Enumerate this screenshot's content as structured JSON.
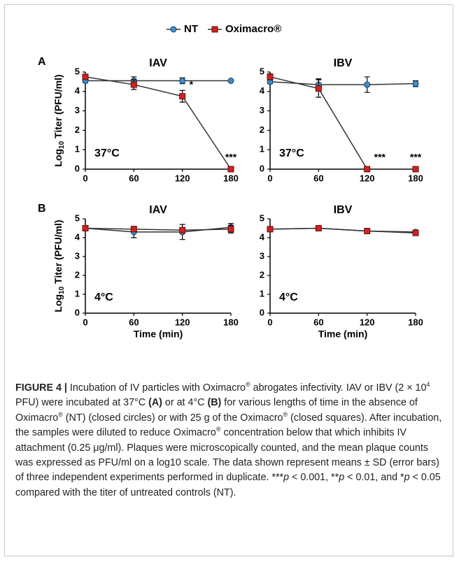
{
  "chart_data": [
    {
      "type": "line",
      "panel": "A",
      "title": "IAV",
      "annotation": "37°C",
      "y_label": [
        "Log",
        "10",
        " Titer (PFU/ml)"
      ],
      "x": [
        0,
        60,
        120,
        180
      ],
      "xlim": [
        0,
        180
      ],
      "xticks": [
        0,
        60,
        120,
        180
      ],
      "ylim": [
        0,
        5
      ],
      "yticks": [
        0,
        1,
        2,
        3,
        4,
        5
      ],
      "series": [
        {
          "name": "NT",
          "color": "#3b8fd0",
          "marker": "circle",
          "values": [
            4.55,
            4.55,
            4.55,
            4.55
          ],
          "errors": [
            0.1,
            0.2,
            0.15,
            0.05
          ]
        },
        {
          "name": "Oximacro®",
          "color": "#d42020",
          "marker": "square",
          "values": [
            4.75,
            4.35,
            3.75,
            0
          ],
          "errors": [
            0.1,
            0.25,
            0.3,
            0
          ]
        }
      ],
      "significance": [
        {
          "x": 120,
          "label": "*"
        },
        {
          "x": 180,
          "label": "***"
        }
      ]
    },
    {
      "type": "line",
      "title": "IBV",
      "annotation": "37°C",
      "x": [
        0,
        60,
        120,
        180
      ],
      "xlim": [
        0,
        180
      ],
      "xticks": [
        0,
        60,
        120,
        180
      ],
      "ylim": [
        0,
        5
      ],
      "yticks": [
        0,
        1,
        2,
        3,
        4,
        5
      ],
      "series": [
        {
          "name": "NT",
          "color": "#3b8fd0",
          "marker": "circle",
          "values": [
            4.5,
            4.35,
            4.35,
            4.4
          ],
          "errors": [
            0.1,
            0.3,
            0.4,
            0.15
          ]
        },
        {
          "name": "Oximacro®",
          "color": "#d42020",
          "marker": "square",
          "values": [
            4.75,
            4.15,
            0,
            0
          ],
          "errors": [
            0.15,
            0.45,
            0,
            0
          ]
        }
      ],
      "significance": [
        {
          "x": 120,
          "label": "***"
        },
        {
          "x": 180,
          "label": "***"
        }
      ]
    },
    {
      "type": "line",
      "panel": "B",
      "title": "IAV",
      "annotation": "4°C",
      "y_label": [
        "Log",
        "10",
        " Titer (PFU/ml)"
      ],
      "x_label": "Time (min)",
      "x": [
        0,
        60,
        120,
        180
      ],
      "xlim": [
        0,
        180
      ],
      "xticks": [
        0,
        60,
        120,
        180
      ],
      "ylim": [
        0,
        5
      ],
      "yticks": [
        0,
        1,
        2,
        3,
        4,
        5
      ],
      "series": [
        {
          "name": "NT",
          "color": "#3b8fd0",
          "marker": "circle",
          "values": [
            4.5,
            4.3,
            4.3,
            4.55
          ],
          "errors": [
            0.1,
            0.3,
            0.4,
            0.2
          ]
        },
        {
          "name": "Oximacro®",
          "color": "#d42020",
          "marker": "square",
          "values": [
            4.5,
            4.45,
            4.4,
            4.45
          ],
          "errors": [
            0.1,
            0.1,
            0.1,
            0.2
          ]
        }
      ]
    },
    {
      "type": "line",
      "title": "IBV",
      "annotation": "4°C",
      "x_label": "Time (min)",
      "x": [
        0,
        60,
        120,
        180
      ],
      "xlim": [
        0,
        180
      ],
      "xticks": [
        0,
        60,
        120,
        180
      ],
      "ylim": [
        0,
        5
      ],
      "yticks": [
        0,
        1,
        2,
        3,
        4,
        5
      ],
      "series": [
        {
          "name": "NT",
          "color": "#3b8fd0",
          "marker": "circle",
          "values": [
            4.45,
            4.5,
            4.35,
            4.3
          ],
          "errors": [
            0.1,
            0.05,
            0.05,
            0.1
          ]
        },
        {
          "name": "Oximacro®",
          "color": "#d42020",
          "marker": "square",
          "values": [
            4.45,
            4.5,
            4.35,
            4.25
          ],
          "errors": [
            0.1,
            0.05,
            0.05,
            0.1
          ]
        }
      ]
    }
  ],
  "caption": [
    "FIGURE 4 |",
    " Incubation of IV particles with Oximacro",
    "®",
    " abrogates infectivity. IAV or IBV (2 × 10",
    "4",
    " PFU) were incubated at 37°C ",
    "(A)",
    " or at 4°C ",
    "(B)",
    " for various lengths of time in the absence of Oximacro",
    "®",
    " (NT) (closed circles) or with 25 g of the Oximacro",
    "®",
    " (closed squares). After incubation, the samples were diluted to reduce Oximacro",
    "®",
    " concentration below that which inhibits IV attachment (0.25 μg/ml). Plaques were microscopically counted, and the mean plaque counts was expressed as PFU/ml on a log10 scale. The data shown represent means ± SD (error bars) of three independent experiments performed in duplicate. ",
    "***",
    "p",
    " < 0.001, **",
    "p",
    " < 0.01, and *",
    "p",
    " < 0.05 compared with the titer of untreated controls (NT)."
  ]
}
